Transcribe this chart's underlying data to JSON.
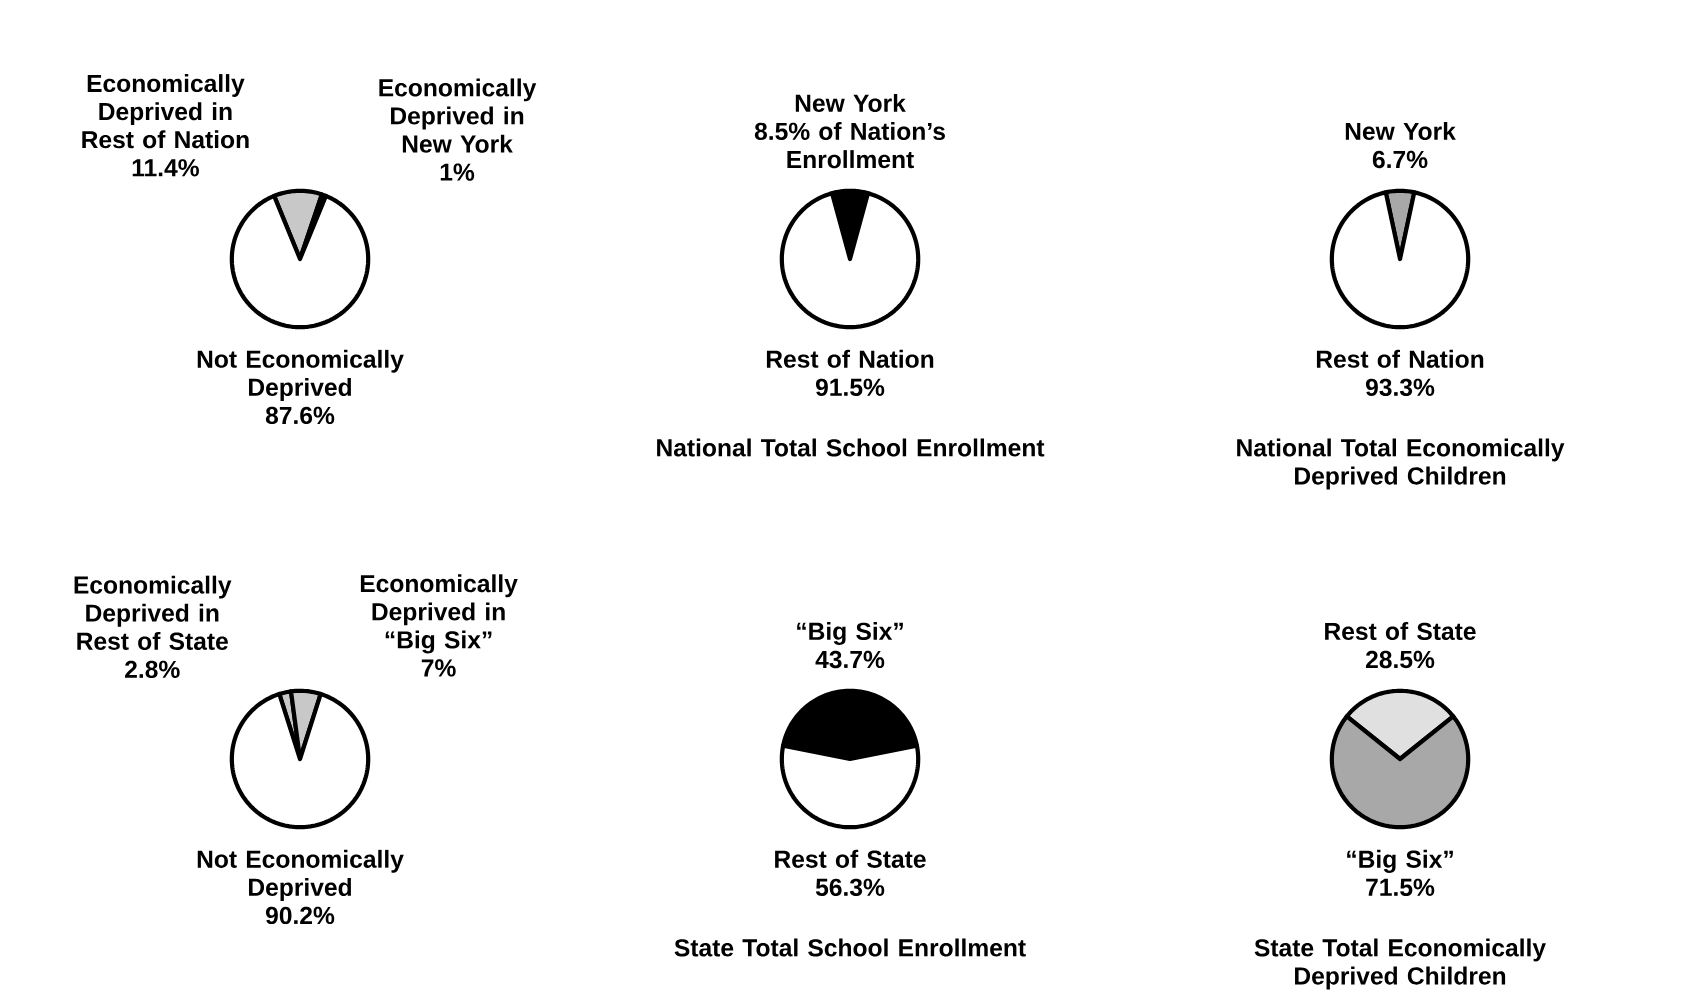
{
  "chart_data": [
    {
      "type": "pie",
      "categories": [
        "Economically Deprived in Rest of Nation",
        "Economically Deprived in New York",
        "Not Economically Deprived"
      ],
      "values": [
        11.4,
        1,
        87.6
      ],
      "colors": [
        "#c8c8c8",
        "#c8c8c8",
        "#ffffff"
      ],
      "value_labels": [
        "11.4%",
        "1%",
        "87.6%"
      ]
    },
    {
      "type": "pie",
      "title": "National Total School Enrollment",
      "categories": [
        "New York",
        "Rest of Nation"
      ],
      "values": [
        8.5,
        91.5
      ],
      "colors": [
        "#000000",
        "#ffffff"
      ],
      "value_labels": [
        "8.5% of Nation’s Enrollment",
        "91.5%"
      ]
    },
    {
      "type": "pie",
      "title": "National Total Economically Deprived Children",
      "categories": [
        "New York",
        "Rest of Nation"
      ],
      "values": [
        6.7,
        93.3
      ],
      "colors": [
        "#a8a8a8",
        "#ffffff"
      ],
      "value_labels": [
        "6.7%",
        "93.3%"
      ]
    },
    {
      "type": "pie",
      "categories": [
        "Economically Deprived in Rest of State",
        "Economically Deprived in “Big Six”",
        "Not Economically Deprived"
      ],
      "values": [
        2.8,
        7,
        90.2
      ],
      "colors": [
        "#c8c8c8",
        "#c8c8c8",
        "#ffffff"
      ],
      "value_labels": [
        "2.8%",
        "7%",
        "90.2%"
      ]
    },
    {
      "type": "pie",
      "title": "State Total School Enrollment",
      "categories": [
        "“Big Six”",
        "Rest of State"
      ],
      "values": [
        43.7,
        56.3
      ],
      "colors": [
        "#000000",
        "#ffffff"
      ],
      "value_labels": [
        "43.7%",
        "56.3%"
      ]
    },
    {
      "type": "pie",
      "title": "State Total Economically Deprived Children",
      "categories": [
        "Rest of State",
        "“Big Six”"
      ],
      "values": [
        28.5,
        71.5
      ],
      "colors": [
        "#e0e0e0",
        "#a8a8a8"
      ],
      "value_labels": [
        "28.5%",
        "71.5%"
      ]
    }
  ]
}
